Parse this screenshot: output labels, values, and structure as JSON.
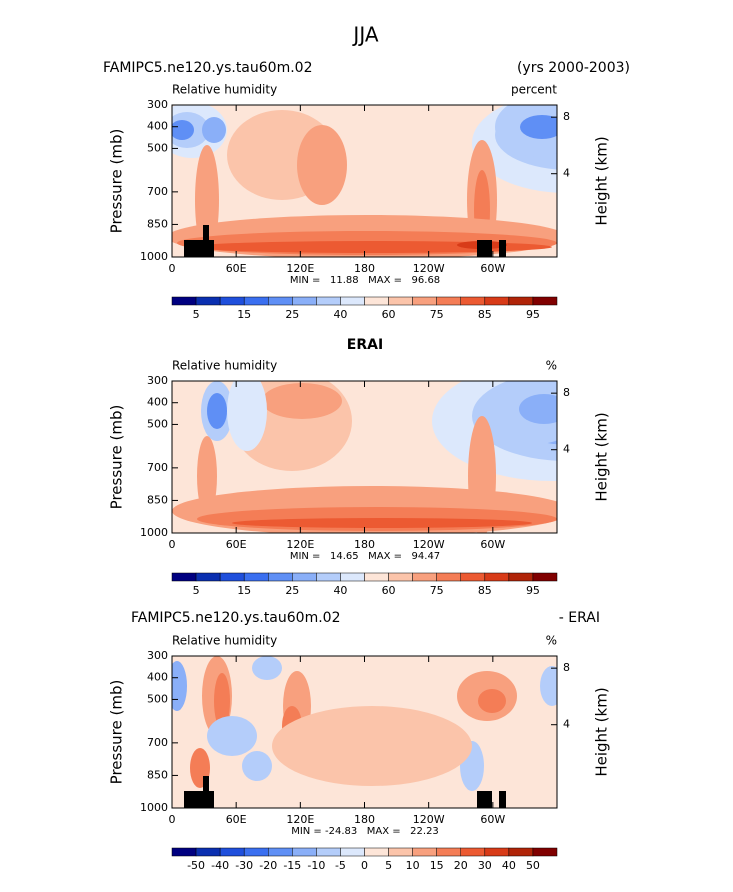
{
  "figure_title": "JJA",
  "chart_data": [
    {
      "type": "contour",
      "title": "FAMIPC5.ne120.ys.tau60m.02",
      "title_right": "(yrs 2000-2003)",
      "subtitle": "Relative humidity",
      "units": "percent",
      "ylabel": "Pressure (mb)",
      "y2label": "Height (km)",
      "annotation": "MIN =   11.88   MAX =   96.68",
      "xlim": [
        0,
        360
      ],
      "xticks": [
        0,
        {
          "value": 60,
          "label": "60E"
        },
        {
          "value": 120,
          "label": "120E"
        },
        180,
        {
          "value": 240,
          "label": "120W"
        },
        {
          "value": 300,
          "label": "60W"
        }
      ],
      "ylim": [
        1000,
        300
      ],
      "yticks": [
        300,
        400,
        500,
        700,
        850,
        1000
      ],
      "y2ticks": [
        8,
        4
      ],
      "colorbar": {
        "colors": [
          "#000080",
          "#0a2fb0",
          "#1f4fdc",
          "#3a6ff0",
          "#5f8ff5",
          "#8aaff8",
          "#b4cdfa",
          "#dce8fc",
          "#fde5d8",
          "#fbc4aa",
          "#f8a07e",
          "#f47d56",
          "#ec5a32",
          "#d83b18",
          "#b02408",
          "#800000"
        ],
        "labels": [
          5,
          15,
          25,
          40,
          60,
          75,
          85,
          95
        ]
      }
    },
    {
      "type": "contour",
      "title": "ERAI",
      "subtitle": "Relative humidity",
      "units": "%",
      "ylabel": "Pressure (mb)",
      "y2label": "Height (km)",
      "annotation": "MIN =   14.65   MAX =   94.47",
      "xlim": [
        0,
        360
      ],
      "xticks": [
        0,
        {
          "value": 60,
          "label": "60E"
        },
        {
          "value": 120,
          "label": "120E"
        },
        180,
        {
          "value": 240,
          "label": "120W"
        },
        {
          "value": 300,
          "label": "60W"
        }
      ],
      "ylim": [
        1000,
        300
      ],
      "yticks": [
        300,
        400,
        500,
        700,
        850,
        1000
      ],
      "y2ticks": [
        8,
        4
      ],
      "colorbar": {
        "colors": [
          "#000080",
          "#0a2fb0",
          "#1f4fdc",
          "#3a6ff0",
          "#5f8ff5",
          "#8aaff8",
          "#b4cdfa",
          "#dce8fc",
          "#fde5d8",
          "#fbc4aa",
          "#f8a07e",
          "#f47d56",
          "#ec5a32",
          "#d83b18",
          "#b02408",
          "#800000"
        ],
        "labels": [
          5,
          15,
          25,
          40,
          60,
          75,
          85,
          95
        ]
      }
    },
    {
      "type": "contour",
      "title": "FAMIPC5.ne120.ys.tau60m.02",
      "title_right": "- ERAI",
      "subtitle": "Relative humidity",
      "units": "%",
      "ylabel": "Pressure (mb)",
      "y2label": "Height (km)",
      "annotation": "MIN = -24.83   MAX =   22.23",
      "xlim": [
        0,
        360
      ],
      "xticks": [
        0,
        {
          "value": 60,
          "label": "60E"
        },
        {
          "value": 120,
          "label": "120E"
        },
        180,
        {
          "value": 240,
          "label": "120W"
        },
        {
          "value": 300,
          "label": "60W"
        }
      ],
      "ylim": [
        1000,
        300
      ],
      "yticks": [
        300,
        400,
        500,
        700,
        850,
        1000
      ],
      "y2ticks": [
        8,
        4
      ],
      "colorbar": {
        "colors": [
          "#000080",
          "#0a2fb0",
          "#1f4fdc",
          "#3a6ff0",
          "#5f8ff5",
          "#8aaff8",
          "#b4cdfa",
          "#dce8fc",
          "#fde5d8",
          "#fbc4aa",
          "#f8a07e",
          "#f47d56",
          "#ec5a32",
          "#d83b18",
          "#b02408",
          "#800000"
        ],
        "labels": [
          -50,
          -40,
          -30,
          -20,
          -15,
          -10,
          -5,
          0,
          5,
          10,
          15,
          20,
          30,
          40,
          50
        ]
      }
    }
  ]
}
